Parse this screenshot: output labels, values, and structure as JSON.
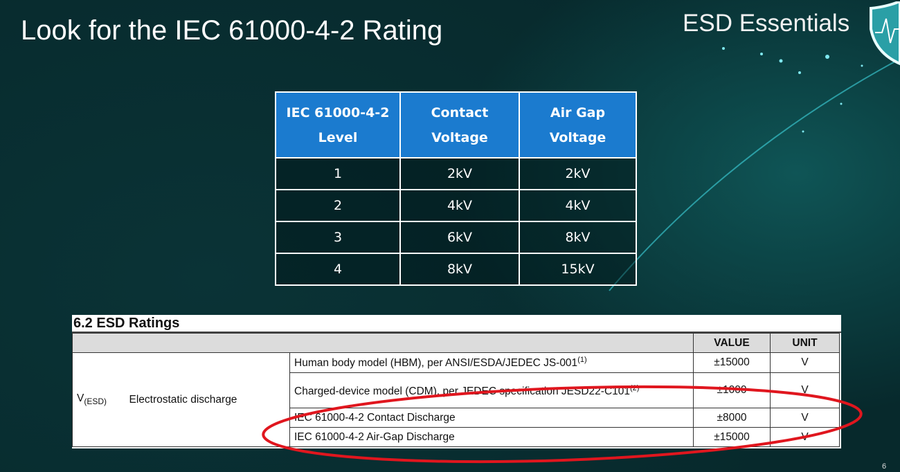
{
  "slide": {
    "title": "Look for the IEC 61000-4-2 Rating",
    "brand": "ESD Essentials",
    "page_number": "6",
    "logo_icon": "shield-heartbeat-icon",
    "accent": "#1b7bcf",
    "highlight": "#e0161e"
  },
  "level_table": {
    "headers": [
      [
        "IEC 61000-4-2",
        "Level"
      ],
      [
        "Contact",
        "Voltage"
      ],
      [
        "Air Gap",
        "Voltage"
      ]
    ],
    "rows": [
      [
        "1",
        "2kV",
        "2kV"
      ],
      [
        "2",
        "4kV",
        "4kV"
      ],
      [
        "3",
        "6kV",
        "8kV"
      ],
      [
        "4",
        "8kV",
        "15kV"
      ]
    ]
  },
  "esd_table": {
    "title": "6.2   ESD Ratings",
    "headers": {
      "value": "VALUE",
      "unit": "UNIT"
    },
    "symbol": "V",
    "symbol_sub": "(ESD)",
    "parameter": "Electrostatic discharge",
    "rows": [
      {
        "condition": "Human body model (HBM), per ANSI/ESDA/JEDEC JS-001",
        "note": "(1)",
        "value": "±15000",
        "unit": "V"
      },
      {
        "condition": "Charged-device model (CDM), per JEDEC specification JESD22-C101",
        "note": "(2)",
        "value": "±1000",
        "unit": "V"
      },
      {
        "condition": "IEC 61000-4-2 Contact Discharge",
        "note": "",
        "value": "±8000",
        "unit": "V"
      },
      {
        "condition": "IEC 61000-4-2 Air-Gap Discharge",
        "note": "",
        "value": "±15000",
        "unit": "V"
      }
    ]
  }
}
